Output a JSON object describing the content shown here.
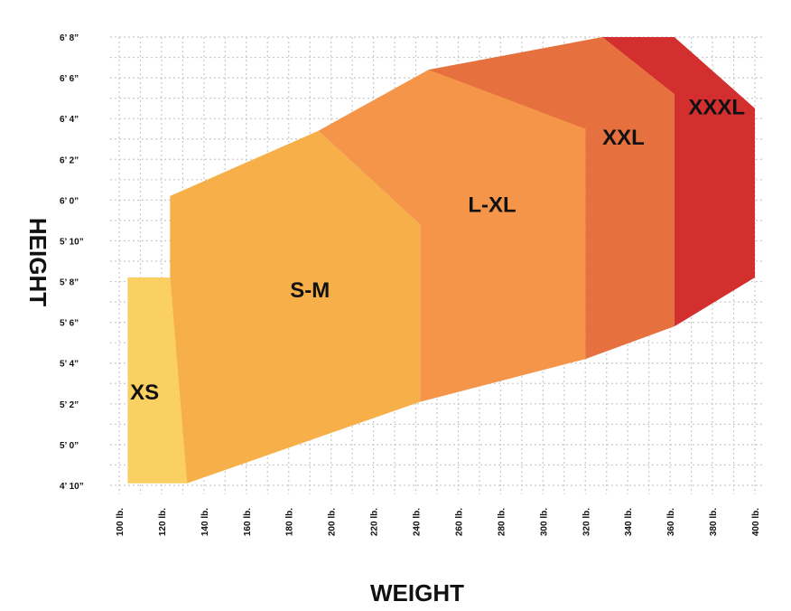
{
  "chart_data": {
    "type": "area",
    "xlabel": "WEIGHT",
    "ylabel": "HEIGHT",
    "x_unit": "lb",
    "y_unit": "inches",
    "xlim": [
      100,
      400
    ],
    "ylim": [
      58,
      80
    ],
    "grid": true,
    "x_tick_labels": [
      "100 lb.",
      "120 lb.",
      "140 lb.",
      "160 lb.",
      "180 lb.",
      "200 lb.",
      "220 lb.",
      "240 lb.",
      "260 lb.",
      "280 lb.",
      "300 lb.",
      "320 lb.",
      "340 lb.",
      "360 lb.",
      "380 lb.",
      "400 lb."
    ],
    "y_tick_labels": [
      "4’ 10”",
      "5’ 0”",
      "5’ 2”",
      "5’ 4”",
      "5’ 6”",
      "5’ 8”",
      "5’ 10”",
      "6’ 0”",
      "6’ 2”",
      "6’ 4”",
      "6’ 6”",
      "6’ 8”"
    ],
    "zones": [
      {
        "name": "XS",
        "color": "#FAD062",
        "label_at": [
          112,
          62.5
        ],
        "polygon": [
          [
            104,
            68.2
          ],
          [
            124,
            68.2
          ],
          [
            132,
            58.1
          ],
          [
            104,
            58.1
          ]
        ]
      },
      {
        "name": "S-M",
        "color": "#F7B049",
        "label_at": [
          190,
          67.5
        ],
        "polygon": [
          [
            124,
            72.2
          ],
          [
            194,
            75.4
          ],
          [
            242,
            70.8
          ],
          [
            242,
            62.1
          ],
          [
            132,
            58.1
          ],
          [
            124,
            68.2
          ]
        ]
      },
      {
        "name": "L-XL",
        "color": "#F4954A",
        "label_at": [
          276,
          71.7
        ],
        "polygon": [
          [
            194,
            75.4
          ],
          [
            246,
            78.4
          ],
          [
            290,
            78.4
          ],
          [
            320,
            75.5
          ],
          [
            320,
            64.2
          ],
          [
            242,
            62.1
          ],
          [
            242,
            70.8
          ]
        ]
      },
      {
        "name": "XXL",
        "color": "#E6703E",
        "label_at": [
          338,
          75
        ],
        "polygon": [
          [
            246,
            78.4
          ],
          [
            328,
            80.0
          ],
          [
            362,
            77.2
          ],
          [
            362,
            65.8
          ],
          [
            320,
            64.2
          ],
          [
            320,
            75.5
          ]
        ]
      },
      {
        "name": "XXXL",
        "color": "#D22F2E",
        "label_at": [
          382,
          76.5
        ],
        "polygon": [
          [
            328,
            80.0
          ],
          [
            362,
            80.0
          ],
          [
            400,
            76.5
          ],
          [
            400,
            68.2
          ],
          [
            362,
            65.8
          ],
          [
            362,
            77.2
          ]
        ]
      }
    ]
  }
}
